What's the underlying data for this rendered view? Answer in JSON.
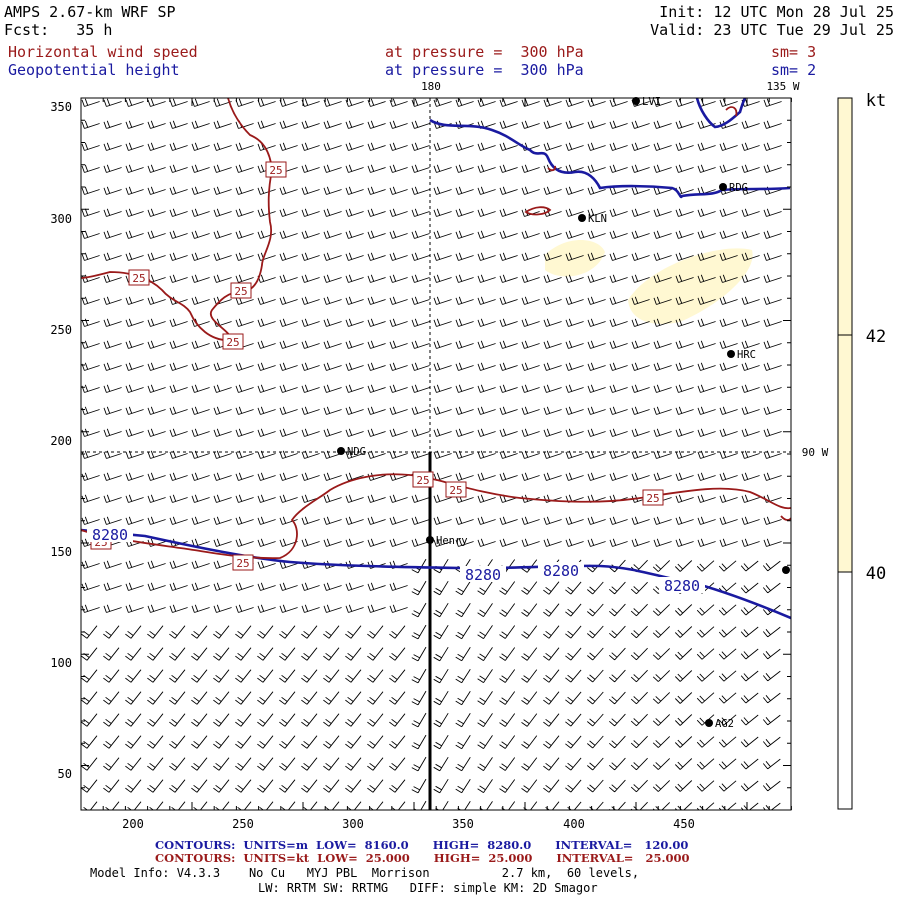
{
  "header": {
    "model": "AMPS 2.67-km WRF SP",
    "fcst": "Fcst:   35 h",
    "init": "Init: 12 UTC Mon 28 Jul 25",
    "valid": "Valid: 23 UTC Tue 29 Jul 25"
  },
  "fields": [
    {
      "name": "Horizontal wind speed",
      "level": "at pressure =  300 hPa",
      "smooth": "sm= 3",
      "color": "#9a1a1a"
    },
    {
      "name": "Geopotential height",
      "level": "at pressure =  300 hPa",
      "smooth": "sm= 2",
      "color": "#1a1aa0"
    }
  ],
  "map": {
    "x_ticks": [
      "200",
      "250",
      "300",
      "350",
      "400",
      "450"
    ],
    "y_ticks": [
      "350",
      "300",
      "250",
      "200",
      "150",
      "100",
      "50"
    ],
    "meridians": [
      "180",
      "135 W",
      "90 W"
    ],
    "stations": [
      "LVI",
      "RDG",
      "KLN",
      "HRC",
      "NDG",
      "Henry",
      "AG2"
    ],
    "station_positions": [
      [
        636,
        101
      ],
      [
        723,
        187
      ],
      [
        582,
        218
      ],
      [
        731,
        354
      ],
      [
        341,
        451
      ],
      [
        430,
        540
      ],
      [
        709,
        723
      ]
    ],
    "height_contour_label": "8280",
    "wind_contour_label": "25"
  },
  "colorbar": {
    "unit": "kt",
    "labels": [
      "42",
      "40"
    ],
    "fill_color": "#fff8d2"
  },
  "footer": {
    "contours_height": "CONTOURS:  UNITS=m  LOW=  8160.0      HIGH=  8280.0      INTERVAL=   120.00",
    "contours_wind": "CONTOURS:  UNITS=kt  LOW=  25.000      HIGH=  25.000      INTERVAL=   25.000",
    "model_info": "Model Info: V4.3.3    No Cu   MYJ PBL  Morrison          2.7 km,  60 levels,",
    "physics": "LW: RRTM SW: RRTMG   DIFF: simple KM: 2D Smagor"
  }
}
